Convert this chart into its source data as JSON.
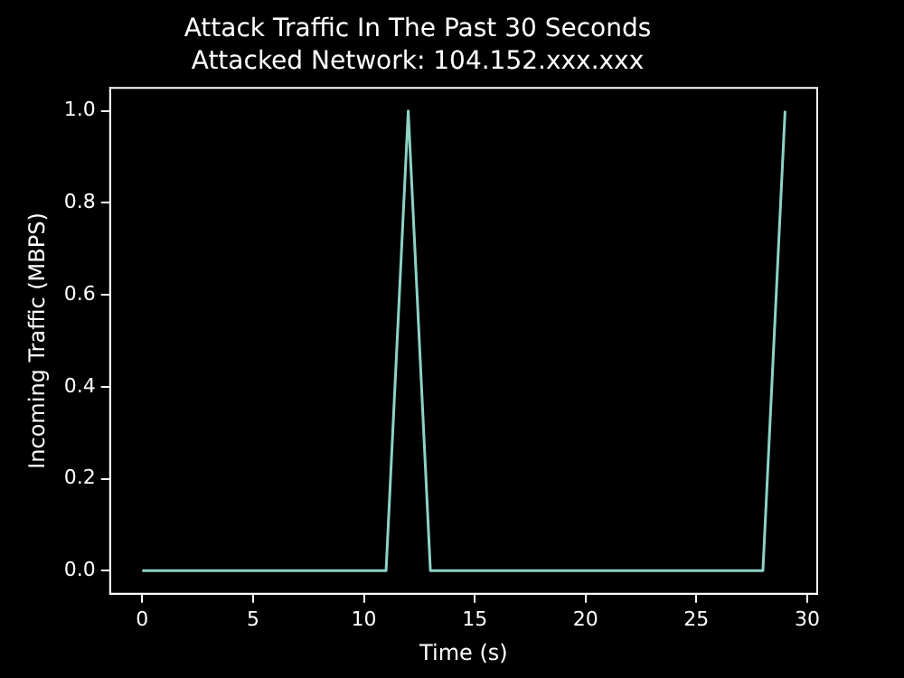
{
  "chart_data": {
    "type": "line",
    "title": "Attack Traffic In The Past 30 Seconds",
    "subtitle": "Attacked Network: 104.152.xxx.xxx",
    "xlabel": "Time (s)",
    "ylabel": "Incoming Traffic (MBPS)",
    "x": [
      0,
      1,
      2,
      3,
      4,
      5,
      6,
      7,
      8,
      9,
      10,
      11,
      12,
      13,
      14,
      15,
      16,
      17,
      18,
      19,
      20,
      21,
      22,
      23,
      24,
      25,
      26,
      27,
      28,
      29
    ],
    "series": [
      {
        "color": "#8dd3c7",
        "values": [
          0,
          0,
          0,
          0,
          0,
          0,
          0,
          0,
          0,
          0,
          0,
          0,
          1,
          0,
          0,
          0,
          0,
          0,
          0,
          0,
          0,
          0,
          0,
          0,
          0,
          0,
          0,
          0,
          0,
          1
        ]
      }
    ],
    "xlim": [
      -1.45,
      30.45
    ],
    "xticks": [
      0,
      5,
      10,
      15,
      20,
      25,
      30
    ],
    "ylim": [
      -0.05,
      1.05
    ],
    "yticks": [
      {
        "value": 0,
        "label": "0.0"
      },
      {
        "value": 0.2,
        "label": "0.2"
      },
      {
        "value": 0.4,
        "label": "0.4"
      },
      {
        "value": 0.6,
        "label": "0.6"
      },
      {
        "value": 0.8,
        "label": "0.8"
      },
      {
        "value": 1,
        "label": "1.0"
      }
    ],
    "grid": false,
    "legend": false,
    "marker": "none",
    "line_style": "solid"
  }
}
